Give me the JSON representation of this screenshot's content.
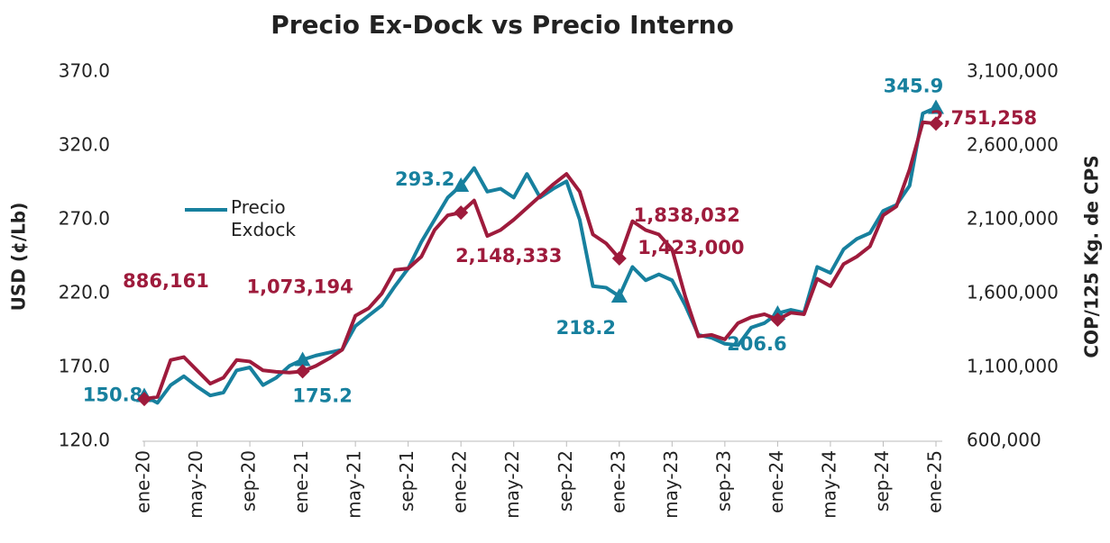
{
  "chart_data": {
    "type": "line",
    "title": "Precio Ex-Dock vs Precio Interno",
    "y_label": "USD (¢/Lb)",
    "y2_label": "COP/125 Kg. de CPS",
    "categories": [
      "ene-20",
      null,
      null,
      null,
      "may-20",
      null,
      null,
      null,
      "sep-20",
      null,
      null,
      null,
      "ene-21",
      null,
      null,
      null,
      "may-21",
      null,
      null,
      null,
      "sep-21",
      null,
      null,
      null,
      "ene-22",
      null,
      null,
      null,
      "may-22",
      null,
      null,
      null,
      "sep-22",
      null,
      null,
      null,
      "ene-23",
      null,
      null,
      null,
      "may-23",
      null,
      null,
      null,
      "sep-23",
      null,
      null,
      null,
      "ene-24",
      null,
      null,
      null,
      "may-24",
      null,
      null,
      null,
      "sep-24",
      null,
      null,
      null,
      "ene-25"
    ],
    "ylim": [
      120,
      370
    ],
    "yticks": [
      {
        "value": 120,
        "label": "120.0"
      },
      {
        "value": 170,
        "label": "170.0"
      },
      {
        "value": 220,
        "label": "220.0"
      },
      {
        "value": 270,
        "label": "270.0"
      },
      {
        "value": 320,
        "label": "320.0"
      },
      {
        "value": 370,
        "label": "370.0"
      }
    ],
    "y2lim": [
      600000,
      3100000
    ],
    "y2ticks": [
      {
        "value": 600000,
        "label": "600,000"
      },
      {
        "value": 1100000,
        "label": "1,100,000"
      },
      {
        "value": 1600000,
        "label": "1,600,000"
      },
      {
        "value": 2100000,
        "label": "2,100,000"
      },
      {
        "value": 2600000,
        "label": "2,600,000"
      },
      {
        "value": 3100000,
        "label": "3,100,000"
      }
    ],
    "legend": "left",
    "series": [
      {
        "name": "Precio Exdock",
        "color": "#17809e",
        "marker": "triangle",
        "values": [
          150.8,
          146,
          158,
          164,
          157,
          151,
          153,
          168,
          170,
          158,
          163,
          171,
          175.2,
          178,
          180,
          182,
          198,
          205,
          212,
          225,
          237,
          255,
          270,
          285,
          293.2,
          305,
          289,
          291,
          285,
          301,
          285,
          291,
          296,
          270,
          225,
          224,
          218.2,
          238,
          229,
          233,
          229,
          212,
          192,
          190,
          186,
          185,
          197,
          200,
          206.6,
          209,
          207,
          238,
          234,
          250,
          257,
          261,
          276,
          280,
          293,
          342,
          345.9
        ],
        "value_labels": [
          "150.8",
          null,
          null,
          null,
          null,
          null,
          null,
          null,
          null,
          null,
          null,
          null,
          "175.2",
          null,
          null,
          null,
          null,
          null,
          null,
          null,
          null,
          null,
          null,
          null,
          "293.2",
          null,
          null,
          null,
          null,
          null,
          null,
          null,
          null,
          null,
          null,
          null,
          "218.2",
          null,
          null,
          null,
          null,
          null,
          null,
          null,
          null,
          null,
          null,
          null,
          "206.6",
          null,
          null,
          null,
          null,
          null,
          null,
          null,
          null,
          null,
          null,
          null,
          "345.9"
        ]
      },
      {
        "color": "#9e1b3c",
        "axis": "y2",
        "marker": "diamond",
        "values": [
          886161,
          900000,
          1150000,
          1170000,
          1080000,
          990000,
          1030000,
          1150000,
          1140000,
          1080000,
          1070000,
          1065000,
          1073194,
          1110000,
          1160000,
          1220000,
          1450000,
          1500000,
          1600000,
          1760000,
          1770000,
          1850000,
          2030000,
          2130000,
          2148333,
          2230000,
          1990000,
          2030000,
          2100000,
          2180000,
          2260000,
          2340000,
          2410000,
          2290000,
          2000000,
          1940000,
          1838032,
          2090000,
          2030000,
          2000000,
          1900000,
          1580000,
          1310000,
          1320000,
          1290000,
          1400000,
          1440000,
          1460000,
          1423000,
          1470000,
          1460000,
          1700000,
          1650000,
          1800000,
          1850000,
          1920000,
          2130000,
          2190000,
          2440000,
          2760000,
          2751258
        ],
        "value_labels": [
          "886,161",
          null,
          null,
          null,
          null,
          null,
          null,
          null,
          null,
          null,
          null,
          null,
          "1,073,194",
          null,
          null,
          null,
          null,
          null,
          null,
          null,
          null,
          null,
          null,
          null,
          "2,148,333",
          null,
          null,
          null,
          null,
          null,
          null,
          null,
          null,
          null,
          null,
          null,
          "1,838,032",
          null,
          null,
          null,
          null,
          null,
          null,
          null,
          null,
          null,
          null,
          null,
          "1,423,000",
          null,
          null,
          null,
          null,
          null,
          null,
          null,
          null,
          null,
          null,
          null,
          "2,751,258"
        ]
      }
    ]
  }
}
